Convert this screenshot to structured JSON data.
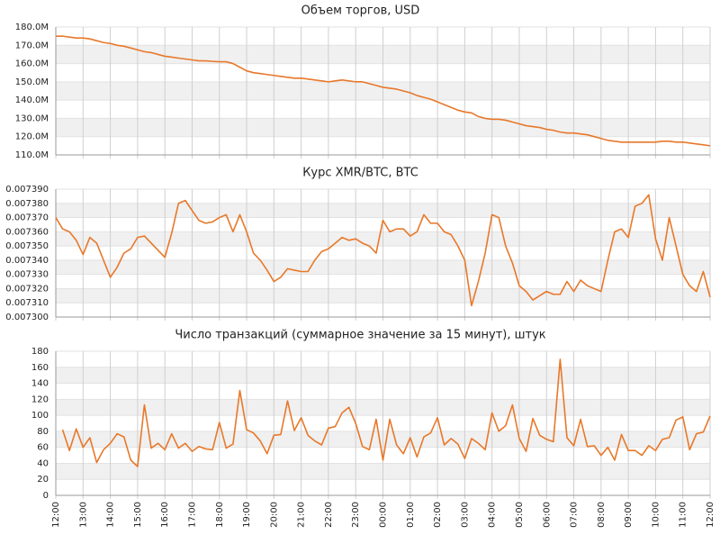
{
  "chart_data": [
    {
      "type": "line",
      "title": "Объем торгов, USD",
      "color": "#e8782a",
      "grid": true,
      "xlim": [
        0,
        24
      ],
      "x": [
        0,
        0.25,
        0.5,
        0.75,
        1,
        1.25,
        1.5,
        1.75,
        2,
        2.25,
        2.5,
        2.75,
        3,
        3.25,
        3.5,
        3.75,
        4,
        4.25,
        4.5,
        4.75,
        5,
        5.25,
        5.5,
        5.75,
        6,
        6.25,
        6.5,
        6.75,
        7,
        7.25,
        7.5,
        7.75,
        8,
        8.25,
        8.5,
        8.75,
        9,
        9.25,
        9.5,
        9.75,
        10,
        10.25,
        10.5,
        10.75,
        11,
        11.25,
        11.5,
        11.75,
        12,
        12.25,
        12.5,
        12.75,
        13,
        13.25,
        13.5,
        13.75,
        14,
        14.25,
        14.5,
        14.75,
        15,
        15.25,
        15.5,
        15.75,
        16,
        16.25,
        16.5,
        16.75,
        17,
        17.25,
        17.5,
        17.75,
        18,
        18.25,
        18.5,
        18.75,
        19,
        19.25,
        19.5,
        19.75,
        20,
        20.25,
        20.5,
        20.75,
        21,
        21.25,
        21.5,
        21.75,
        22,
        22.25,
        22.5,
        22.75,
        23,
        23.25,
        23.5,
        23.75,
        24
      ],
      "values": [
        175000000,
        175000000,
        174500000,
        174000000,
        174000000,
        173500000,
        172500000,
        171500000,
        171000000,
        170000000,
        169500000,
        168500000,
        167500000,
        166500000,
        166000000,
        165000000,
        164000000,
        163500000,
        163000000,
        162500000,
        162000000,
        161500000,
        161500000,
        161200000,
        161000000,
        161000000,
        160000000,
        158000000,
        156000000,
        155000000,
        154500000,
        154000000,
        153500000,
        153000000,
        152500000,
        152000000,
        152000000,
        151500000,
        151000000,
        150500000,
        150000000,
        150500000,
        151000000,
        150500000,
        150000000,
        150000000,
        149000000,
        148000000,
        147000000,
        146500000,
        146000000,
        145000000,
        144000000,
        142500000,
        141500000,
        140500000,
        139000000,
        137500000,
        136000000,
        134500000,
        133500000,
        133000000,
        131000000,
        130000000,
        129500000,
        129500000,
        129000000,
        128000000,
        127000000,
        126000000,
        125500000,
        125000000,
        124000000,
        123500000,
        122500000,
        122000000,
        122000000,
        121500000,
        121000000,
        120000000,
        119000000,
        118000000,
        117500000,
        117000000,
        117000000,
        117000000,
        117000000,
        117000000,
        117000000,
        117500000,
        117500000,
        117000000,
        117000000,
        116500000,
        116000000,
        115500000,
        115000000
      ],
      "ylim": [
        110000000,
        180000000
      ],
      "yticks": [
        {
          "value": 110000000,
          "label": "110.0M"
        },
        {
          "value": 120000000,
          "label": "120.0M"
        },
        {
          "value": 130000000,
          "label": "130.0M"
        },
        {
          "value": 140000000,
          "label": "140.0M"
        },
        {
          "value": 150000000,
          "label": "150.0M"
        },
        {
          "value": 160000000,
          "label": "160.0M"
        },
        {
          "value": 170000000,
          "label": "170.0M"
        },
        {
          "value": 180000000,
          "label": "180.0M"
        }
      ]
    },
    {
      "type": "line",
      "title": "Курс XMR/BTC, BTC",
      "color": "#e8782a",
      "grid": true,
      "xlim": [
        0,
        24
      ],
      "x": [
        0,
        0.25,
        0.5,
        0.75,
        1,
        1.25,
        1.5,
        1.75,
        2,
        2.25,
        2.5,
        2.75,
        3,
        3.25,
        3.5,
        3.75,
        4,
        4.25,
        4.5,
        4.75,
        5,
        5.25,
        5.5,
        5.75,
        6,
        6.25,
        6.5,
        6.75,
        7,
        7.25,
        7.5,
        7.75,
        8,
        8.25,
        8.5,
        8.75,
        9,
        9.25,
        9.5,
        9.75,
        10,
        10.25,
        10.5,
        10.75,
        11,
        11.25,
        11.5,
        11.75,
        12,
        12.25,
        12.5,
        12.75,
        13,
        13.25,
        13.5,
        13.75,
        14,
        14.25,
        14.5,
        14.75,
        15,
        15.25,
        15.5,
        15.75,
        16,
        16.25,
        16.5,
        16.75,
        17,
        17.25,
        17.5,
        17.75,
        18,
        18.25,
        18.5,
        18.75,
        19,
        19.25,
        19.5,
        19.75,
        20,
        20.25,
        20.5,
        20.75,
        21,
        21.25,
        21.5,
        21.75,
        22,
        22.25,
        22.5,
        22.75,
        23,
        23.25,
        23.5,
        23.75,
        24
      ],
      "values": [
        0.00737,
        0.007362,
        0.00736,
        0.007354,
        0.007344,
        0.007356,
        0.007352,
        0.00734,
        0.007328,
        0.007335,
        0.007345,
        0.007348,
        0.007356,
        0.007357,
        0.007352,
        0.007347,
        0.007342,
        0.007359,
        0.00738,
        0.007382,
        0.007375,
        0.007368,
        0.007366,
        0.007367,
        0.00737,
        0.007372,
        0.00736,
        0.007372,
        0.00736,
        0.007345,
        0.00734,
        0.007333,
        0.007325,
        0.007328,
        0.007334,
        0.007333,
        0.007332,
        0.007332,
        0.00734,
        0.007346,
        0.007348,
        0.007352,
        0.007356,
        0.007354,
        0.007355,
        0.007352,
        0.00735,
        0.007345,
        0.007368,
        0.00736,
        0.007362,
        0.007362,
        0.007357,
        0.00736,
        0.007372,
        0.007366,
        0.007366,
        0.00736,
        0.007358,
        0.00735,
        0.00734,
        0.007308,
        0.007325,
        0.007345,
        0.007372,
        0.00737,
        0.00735,
        0.007338,
        0.007322,
        0.007318,
        0.007312,
        0.007315,
        0.007318,
        0.007316,
        0.007316,
        0.007325,
        0.007318,
        0.007326,
        0.007322,
        0.00732,
        0.007318,
        0.00734,
        0.00736,
        0.007362,
        0.007356,
        0.007378,
        0.00738,
        0.007386,
        0.007355,
        0.00734,
        0.00737,
        0.00735,
        0.00733,
        0.007322,
        0.007318,
        0.007332,
        0.007314
      ],
      "ylim": [
        0.0073,
        0.00739
      ],
      "yticks": [
        {
          "value": 0.0073,
          "label": "0.007300"
        },
        {
          "value": 0.00731,
          "label": "0.007310"
        },
        {
          "value": 0.00732,
          "label": "0.007320"
        },
        {
          "value": 0.00733,
          "label": "0.007330"
        },
        {
          "value": 0.00734,
          "label": "0.007340"
        },
        {
          "value": 0.00735,
          "label": "0.007350"
        },
        {
          "value": 0.00736,
          "label": "0.007360"
        },
        {
          "value": 0.00737,
          "label": "0.007370"
        },
        {
          "value": 0.00738,
          "label": "0.007380"
        },
        {
          "value": 0.00739,
          "label": "0.007390"
        }
      ]
    },
    {
      "type": "line",
      "title": "Число транзакций (суммарное значение за 15 минут), штук",
      "color": "#e8782a",
      "grid": true,
      "xlim": [
        0,
        24
      ],
      "xticks": [
        {
          "value": 0,
          "label": "12:00"
        },
        {
          "value": 1,
          "label": "13:00"
        },
        {
          "value": 2,
          "label": "14:00"
        },
        {
          "value": 3,
          "label": "15:00"
        },
        {
          "value": 4,
          "label": "16:00"
        },
        {
          "value": 5,
          "label": "17:00"
        },
        {
          "value": 6,
          "label": "18:00"
        },
        {
          "value": 7,
          "label": "19:00"
        },
        {
          "value": 8,
          "label": "20:00"
        },
        {
          "value": 9,
          "label": "21:00"
        },
        {
          "value": 10,
          "label": "22:00"
        },
        {
          "value": 11,
          "label": "23:00"
        },
        {
          "value": 12,
          "label": "00:00"
        },
        {
          "value": 13,
          "label": "01:00"
        },
        {
          "value": 14,
          "label": "02:00"
        },
        {
          "value": 15,
          "label": "03:00"
        },
        {
          "value": 16,
          "label": "04:00"
        },
        {
          "value": 17,
          "label": "05:00"
        },
        {
          "value": 18,
          "label": "06:00"
        },
        {
          "value": 19,
          "label": "07:00"
        },
        {
          "value": 20,
          "label": "08:00"
        },
        {
          "value": 21,
          "label": "09:00"
        },
        {
          "value": 22,
          "label": "10:00"
        },
        {
          "value": 23,
          "label": "11:00"
        },
        {
          "value": 24,
          "label": "12:00"
        }
      ],
      "x": [
        0.25,
        0.5,
        0.75,
        1,
        1.25,
        1.5,
        1.75,
        2,
        2.25,
        2.5,
        2.75,
        3,
        3.25,
        3.5,
        3.75,
        4,
        4.25,
        4.5,
        4.75,
        5,
        5.25,
        5.5,
        5.75,
        6,
        6.25,
        6.5,
        6.75,
        7,
        7.25,
        7.5,
        7.75,
        8,
        8.25,
        8.5,
        8.75,
        9,
        9.25,
        9.5,
        9.75,
        10,
        10.25,
        10.5,
        10.75,
        11,
        11.25,
        11.5,
        11.75,
        12,
        12.25,
        12.5,
        12.75,
        13,
        13.25,
        13.5,
        13.75,
        14,
        14.25,
        14.5,
        14.75,
        15,
        15.25,
        15.5,
        15.75,
        16,
        16.25,
        16.5,
        16.75,
        17,
        17.25,
        17.5,
        17.75,
        18,
        18.25,
        18.5,
        18.75,
        19,
        19.25,
        19.5,
        19.75,
        20,
        20.25,
        20.5,
        20.75,
        21,
        21.25,
        21.5,
        21.75,
        22,
        22.25,
        22.5,
        22.75,
        23,
        23.25,
        23.5,
        23.75,
        24
      ],
      "values": [
        82,
        56,
        83,
        60,
        72,
        41,
        57,
        65,
        77,
        73,
        44,
        36,
        113,
        59,
        65,
        57,
        77,
        59,
        65,
        55,
        61,
        58,
        57,
        91,
        59,
        64,
        131,
        82,
        78,
        68,
        52,
        75,
        76,
        118,
        81,
        97,
        75,
        68,
        63,
        84,
        86,
        103,
        110,
        90,
        61,
        57,
        95,
        44,
        95,
        63,
        52,
        72,
        48,
        73,
        78,
        97,
        63,
        71,
        64,
        46,
        71,
        65,
        57,
        103,
        80,
        87,
        113,
        71,
        55,
        96,
        75,
        70,
        67,
        170,
        72,
        62,
        95,
        61,
        62,
        50,
        60,
        44,
        76,
        56,
        56,
        50,
        62,
        56,
        70,
        72,
        94,
        98,
        57,
        77,
        79,
        99
      ],
      "ylim": [
        0,
        180
      ],
      "yticks": [
        0,
        20,
        40,
        60,
        80,
        100,
        120,
        140,
        160,
        180
      ]
    }
  ]
}
